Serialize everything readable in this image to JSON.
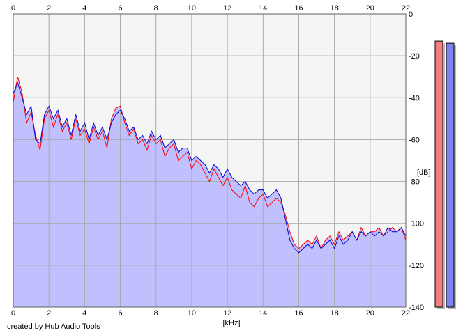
{
  "credit": "created by Hub Audio Tools",
  "colors": {
    "background": "#ffffff",
    "plot_background": "#f5f5f5",
    "grid": "#a8a8a8",
    "fill": "#c0c0ff",
    "left_channel": "#ff0000",
    "right_channel": "#0000cc",
    "meter_left": "#f08080",
    "meter_right": "#8080f0"
  },
  "chart_data": {
    "type": "area",
    "title": "",
    "xlabel": "[kHz]",
    "ylabel": "[dB]",
    "xlim": [
      0,
      22
    ],
    "ylim": [
      -140,
      0
    ],
    "x_ticks": [
      0,
      2,
      4,
      6,
      8,
      10,
      12,
      14,
      16,
      18,
      20,
      22
    ],
    "y_ticks": [
      0,
      -20,
      -40,
      -60,
      -80,
      -100,
      -120,
      -140
    ],
    "y_tick_labels": [
      "0",
      "-20",
      "-40",
      "-60",
      "-80",
      "-100",
      "-120",
      "-140"
    ],
    "grid": true,
    "x": [
      0.0,
      0.25,
      0.5,
      0.75,
      1.0,
      1.25,
      1.5,
      1.75,
      2.0,
      2.25,
      2.5,
      2.75,
      3.0,
      3.25,
      3.5,
      3.75,
      4.0,
      4.25,
      4.5,
      4.75,
      5.0,
      5.25,
      5.5,
      5.75,
      6.0,
      6.25,
      6.5,
      6.75,
      7.0,
      7.25,
      7.5,
      7.75,
      8.0,
      8.25,
      8.5,
      8.75,
      9.0,
      9.25,
      9.5,
      9.75,
      10.0,
      10.25,
      10.5,
      10.75,
      11.0,
      11.25,
      11.5,
      11.75,
      12.0,
      12.25,
      12.5,
      12.75,
      13.0,
      13.25,
      13.5,
      13.75,
      14.0,
      14.25,
      14.5,
      14.75,
      15.0,
      15.25,
      15.5,
      15.75,
      16.0,
      16.25,
      16.5,
      16.75,
      17.0,
      17.25,
      17.5,
      17.75,
      18.0,
      18.25,
      18.5,
      18.75,
      19.0,
      19.25,
      19.5,
      19.75,
      20.0,
      20.25,
      20.5,
      20.75,
      21.0,
      21.25,
      21.5,
      21.75,
      22.0
    ],
    "series": [
      {
        "channel": "left",
        "color": "#ff0000",
        "values": [
          -42,
          -30,
          -38,
          -52,
          -47,
          -58,
          -65,
          -50,
          -46,
          -54,
          -48,
          -56,
          -52,
          -60,
          -50,
          -58,
          -55,
          -62,
          -54,
          -60,
          -56,
          -64,
          -50,
          -45,
          -44,
          -52,
          -58,
          -55,
          -62,
          -60,
          -65,
          -58,
          -62,
          -60,
          -68,
          -64,
          -62,
          -70,
          -68,
          -66,
          -74,
          -70,
          -72,
          -76,
          -80,
          -74,
          -78,
          -82,
          -78,
          -84,
          -86,
          -88,
          -82,
          -90,
          -92,
          -88,
          -86,
          -92,
          -90,
          -88,
          -90,
          -96,
          -104,
          -110,
          -112,
          -110,
          -108,
          -110,
          -106,
          -112,
          -108,
          -106,
          -110,
          -104,
          -108,
          -106,
          -104,
          -108,
          -102,
          -106,
          -104,
          -104,
          -102,
          -106,
          -104,
          -102,
          -104,
          -102,
          -108
        ]
      },
      {
        "channel": "right",
        "color": "#0000cc",
        "values": [
          -38,
          -33,
          -40,
          -48,
          -44,
          -60,
          -62,
          -48,
          -44,
          -50,
          -46,
          -54,
          -50,
          -58,
          -48,
          -56,
          -52,
          -60,
          -52,
          -58,
          -54,
          -60,
          -52,
          -48,
          -46,
          -50,
          -56,
          -54,
          -60,
          -58,
          -62,
          -56,
          -60,
          -58,
          -64,
          -62,
          -60,
          -66,
          -64,
          -64,
          -70,
          -68,
          -70,
          -72,
          -76,
          -72,
          -74,
          -78,
          -74,
          -78,
          -80,
          -82,
          -80,
          -84,
          -86,
          -84,
          -84,
          -88,
          -86,
          -84,
          -88,
          -98,
          -108,
          -112,
          -114,
          -112,
          -110,
          -112,
          -108,
          -112,
          -110,
          -108,
          -112,
          -106,
          -110,
          -108,
          -104,
          -108,
          -104,
          -106,
          -104,
          -106,
          -104,
          -106,
          -102,
          -104,
          -104,
          -102,
          -106
        ]
      }
    ],
    "meters": [
      {
        "channel": "left",
        "level_db": -13
      },
      {
        "channel": "right",
        "level_db": -14
      }
    ]
  }
}
